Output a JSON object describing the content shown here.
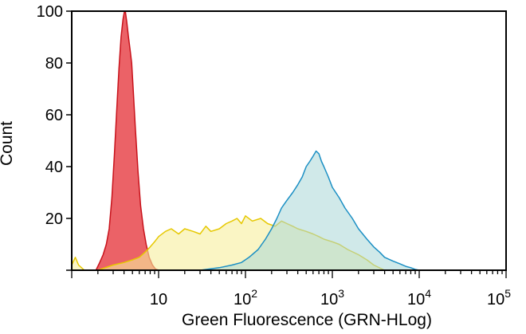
{
  "chart_data": {
    "type": "area",
    "title": "",
    "xlabel": "Green Fluorescence (GRN-HLog)",
    "ylabel": "Count",
    "x_scale": "log10",
    "xlim": [
      1,
      100000
    ],
    "ylim": [
      0,
      100
    ],
    "y_ticks": [
      0,
      20,
      40,
      60,
      80,
      100
    ],
    "y_tick_labels": [
      "",
      "20",
      "40",
      "60",
      "80",
      "100"
    ],
    "x_ticks": [
      10,
      100,
      1000,
      10000,
      100000
    ],
    "x_tick_labels": [
      {
        "base": "10",
        "exp": ""
      },
      {
        "base": "10",
        "exp": "2"
      },
      {
        "base": "10",
        "exp": "3"
      },
      {
        "base": "10",
        "exp": "4"
      },
      {
        "base": "10",
        "exp": "5"
      }
    ],
    "grid": false,
    "legend": "none",
    "series": [
      {
        "color_fill": "#e8474c",
        "color_line": "#c8121b",
        "fill_opacity": 0.85,
        "points": [
          [
            1.9,
            0
          ],
          [
            2.1,
            3
          ],
          [
            2.3,
            6
          ],
          [
            2.5,
            10
          ],
          [
            2.7,
            16
          ],
          [
            2.9,
            28
          ],
          [
            3.1,
            45
          ],
          [
            3.3,
            62
          ],
          [
            3.5,
            78
          ],
          [
            3.7,
            90
          ],
          [
            3.9,
            97
          ],
          [
            4.1,
            101
          ],
          [
            4.3,
            96
          ],
          [
            4.5,
            90
          ],
          [
            4.7,
            85
          ],
          [
            4.9,
            80
          ],
          [
            5.1,
            70
          ],
          [
            5.4,
            55
          ],
          [
            5.8,
            38
          ],
          [
            6.2,
            25
          ],
          [
            6.7,
            16
          ],
          [
            7.2,
            10
          ],
          [
            7.8,
            5
          ],
          [
            8.5,
            2
          ],
          [
            9.2,
            0.5
          ],
          [
            10,
            0
          ]
        ]
      },
      {
        "color_fill": "#f7ee9c",
        "color_line": "#e6c800",
        "fill_opacity": 0.6,
        "points": [
          [
            1,
            2
          ],
          [
            1.1,
            5
          ],
          [
            1.2,
            2
          ],
          [
            1.4,
            0
          ],
          [
            2,
            0
          ],
          [
            3,
            2
          ],
          [
            4,
            3
          ],
          [
            5,
            4
          ],
          [
            6,
            5
          ],
          [
            7,
            7
          ],
          [
            8,
            9
          ],
          [
            9,
            11
          ],
          [
            10,
            13
          ],
          [
            12,
            15
          ],
          [
            14,
            16
          ],
          [
            17,
            14
          ],
          [
            20,
            16
          ],
          [
            25,
            15
          ],
          [
            30,
            14
          ],
          [
            35,
            17
          ],
          [
            40,
            15
          ],
          [
            50,
            16
          ],
          [
            60,
            18
          ],
          [
            70,
            19
          ],
          [
            80,
            20
          ],
          [
            90,
            18
          ],
          [
            100,
            21
          ],
          [
            120,
            19
          ],
          [
            150,
            20
          ],
          [
            180,
            18
          ],
          [
            220,
            17
          ],
          [
            260,
            19
          ],
          [
            300,
            18
          ],
          [
            350,
            17
          ],
          [
            400,
            16
          ],
          [
            500,
            15
          ],
          [
            600,
            14
          ],
          [
            700,
            13
          ],
          [
            800,
            12
          ],
          [
            1000,
            11
          ],
          [
            1200,
            10
          ],
          [
            1500,
            8
          ],
          [
            2000,
            6
          ],
          [
            2500,
            4
          ],
          [
            3000,
            2
          ],
          [
            4000,
            0
          ]
        ]
      },
      {
        "color_fill": "#a9d7d7",
        "color_line": "#1b8fc4",
        "fill_opacity": 0.55,
        "points": [
          [
            30,
            0
          ],
          [
            50,
            1
          ],
          [
            70,
            2
          ],
          [
            90,
            3
          ],
          [
            110,
            5
          ],
          [
            140,
            8
          ],
          [
            170,
            12
          ],
          [
            200,
            16
          ],
          [
            230,
            20
          ],
          [
            260,
            24
          ],
          [
            300,
            27
          ],
          [
            350,
            30
          ],
          [
            400,
            33
          ],
          [
            450,
            36
          ],
          [
            500,
            40
          ],
          [
            550,
            42
          ],
          [
            600,
            44
          ],
          [
            650,
            46
          ],
          [
            700,
            45
          ],
          [
            750,
            42
          ],
          [
            800,
            40
          ],
          [
            900,
            36
          ],
          [
            1000,
            32
          ],
          [
            1200,
            28
          ],
          [
            1400,
            24
          ],
          [
            1700,
            20
          ],
          [
            2000,
            16
          ],
          [
            2500,
            12
          ],
          [
            3000,
            9
          ],
          [
            3500,
            7
          ],
          [
            4000,
            5
          ],
          [
            5000,
            3.5
          ],
          [
            6000,
            2.5
          ],
          [
            7000,
            1.5
          ],
          [
            8000,
            1
          ],
          [
            9000,
            0.3
          ],
          [
            10000,
            0
          ]
        ]
      }
    ]
  }
}
